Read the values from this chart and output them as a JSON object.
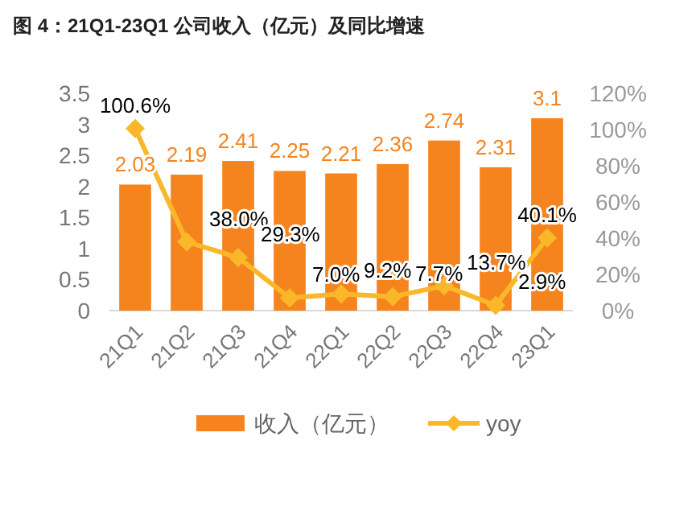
{
  "chart_data": {
    "type": "bar",
    "title": "图 4：21Q1-23Q1 公司收入（亿元）及同比增速",
    "categories": [
      "21Q1",
      "21Q2",
      "21Q3",
      "21Q4",
      "22Q1",
      "22Q2",
      "22Q3",
      "22Q4",
      "23Q1"
    ],
    "series": [
      {
        "name": "收入（亿元）",
        "color": "#f5841f",
        "values": [
          2.03,
          2.19,
          2.41,
          2.25,
          2.21,
          2.36,
          2.74,
          2.31,
          3.1
        ],
        "value_labels": [
          "2.03",
          "2.19",
          "2.41",
          "2.25",
          "2.21",
          "2.36",
          "2.74",
          "2.31",
          "3.1"
        ]
      },
      {
        "name": "yoy",
        "type": "line",
        "axis": "y2",
        "color": "#fbb72a",
        "marker": "diamond",
        "values": [
          100.6,
          38.0,
          29.3,
          7.0,
          9.2,
          7.7,
          13.7,
          2.9,
          40.1
        ],
        "value_labels": [
          "100.6%",
          "38.0%",
          "29.3%",
          "7.0%",
          "9.2%",
          "7.7%",
          "13.7%",
          "2.9%",
          "40.1%"
        ]
      }
    ],
    "ylim": [
      0,
      3.5
    ],
    "yticks": [
      0,
      0.5,
      1,
      1.5,
      2,
      2.5,
      3,
      3.5
    ],
    "y2lim": [
      0,
      120
    ],
    "y2ticks": [
      {
        "value": 0,
        "label": "0%"
      },
      {
        "value": 20,
        "label": "20%"
      },
      {
        "value": 40,
        "label": "40%"
      },
      {
        "value": 60,
        "label": "60%"
      },
      {
        "value": 80,
        "label": "80%"
      },
      {
        "value": 100,
        "label": "100%"
      },
      {
        "value": 120,
        "label": "120%"
      }
    ],
    "grid": false,
    "legend": "bottom"
  }
}
